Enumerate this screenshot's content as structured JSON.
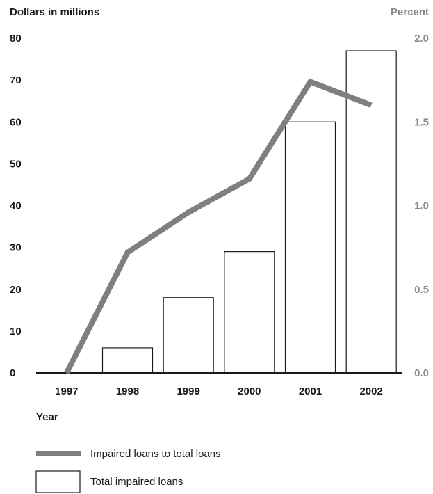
{
  "chart_data": {
    "type": "bar",
    "categories": [
      "1997",
      "1998",
      "1999",
      "2000",
      "2001",
      "2002"
    ],
    "left_axis": {
      "label": "Dollars in millions",
      "ticks": [
        "80",
        "70",
        "60",
        "50",
        "40",
        "30",
        "20",
        "10",
        "0"
      ],
      "ylim": [
        0,
        80
      ]
    },
    "right_axis": {
      "label": "Percent",
      "ticks": [
        "2.0",
        "1.5",
        "1.0",
        "0.5",
        "0.0"
      ],
      "ylim": [
        0,
        2.0
      ]
    },
    "xlabel": "Year",
    "series": [
      {
        "name": "Total impaired loans",
        "type": "bar",
        "axis": "left",
        "values": [
          0,
          6,
          18,
          29,
          60,
          77
        ]
      },
      {
        "name": "Impaired loans to total loans",
        "type": "line",
        "axis": "right",
        "values": [
          0.0,
          0.72,
          0.96,
          1.16,
          1.74,
          1.6
        ]
      }
    ],
    "colors": {
      "line": "#7f7f7f",
      "bar_fill": "#ffffff",
      "bar_stroke": "#1a1a1a",
      "axis": "#1a1a1a",
      "right_text": "#8a8a8a"
    },
    "legend": {
      "placement": "bottom-left"
    }
  }
}
